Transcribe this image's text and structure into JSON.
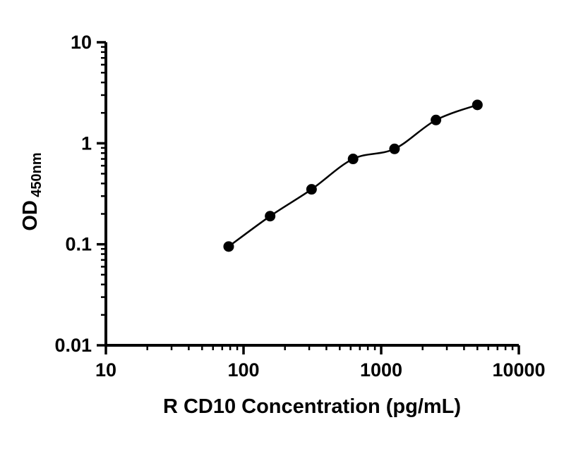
{
  "chart_data": {
    "type": "scatter",
    "title": "",
    "xlabel": "R CD10 Concentration (pg/mL)",
    "ylabel_main": "OD",
    "ylabel_sub": "450nm",
    "x_scale": "log",
    "y_scale": "log",
    "xlim": [
      10,
      10000
    ],
    "ylim": [
      0.01,
      10
    ],
    "x_ticks": [
      10,
      100,
      1000,
      10000
    ],
    "x_tick_labels": [
      "10",
      "100",
      "1000",
      "10000"
    ],
    "y_ticks": [
      0.01,
      0.1,
      1,
      10
    ],
    "y_tick_labels": [
      "0.01",
      "0.1",
      "1",
      "10"
    ],
    "grid": false,
    "legend": "none",
    "marker_color": "#000000",
    "line_color": "#000000",
    "background_color": "#ffffff",
    "points": {
      "x": [
        78,
        156,
        312,
        625,
        1250,
        2500,
        5000
      ],
      "y": [
        0.095,
        0.19,
        0.35,
        0.7,
        0.88,
        1.7,
        2.4
      ]
    }
  }
}
